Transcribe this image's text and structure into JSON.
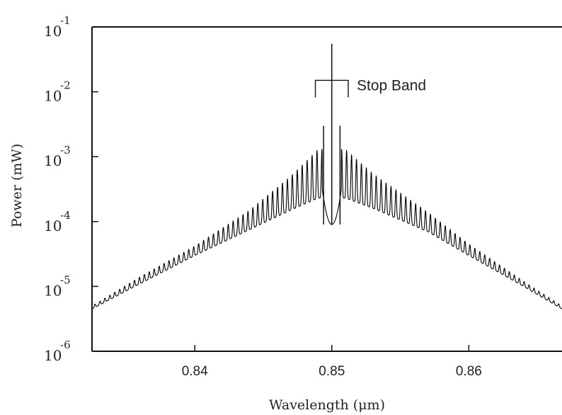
{
  "chart_data": {
    "type": "line",
    "title": "",
    "xlabel": "Wavelength (μm)",
    "ylabel": "Power (mW)",
    "xlim": [
      0.8325,
      0.8668
    ],
    "ylim": [
      1e-06,
      0.1
    ],
    "yscale": "log",
    "grid": false,
    "x_ticks": [
      {
        "value": 0.84,
        "label": "0.84"
      },
      {
        "value": 0.85,
        "label": "0.85"
      },
      {
        "value": 0.86,
        "label": "0.86"
      }
    ],
    "y_ticks": [
      {
        "value": 0.1,
        "base": "10",
        "exp": "-1"
      },
      {
        "value": 0.01,
        "base": "10",
        "exp": "-2"
      },
      {
        "value": 0.001,
        "base": "10",
        "exp": "-3"
      },
      {
        "value": 0.0001,
        "base": "10",
        "exp": "-4"
      },
      {
        "value": 1e-05,
        "base": "10",
        "exp": "-5"
      },
      {
        "value": 1e-06,
        "base": "10",
        "exp": "-6"
      }
    ],
    "series": [
      {
        "envelope_upper": [
          [
            0.8325,
            5e-06
          ],
          [
            0.836,
            1.4e-05
          ],
          [
            0.84,
            4.2e-05
          ],
          [
            0.844,
            0.00015
          ],
          [
            0.847,
            0.0005
          ],
          [
            0.849,
            0.0013
          ],
          [
            0.851,
            0.0013
          ],
          [
            0.853,
            0.00055
          ],
          [
            0.857,
            0.00014
          ],
          [
            0.86,
            4.5e-05
          ],
          [
            0.864,
            1.2e-05
          ],
          [
            0.8668,
            5e-06
          ]
        ],
        "envelope_lower": [
          [
            0.8325,
            4.5e-06
          ],
          [
            0.836,
            1.1e-05
          ],
          [
            0.84,
            3e-05
          ],
          [
            0.844,
            7.5e-05
          ],
          [
            0.847,
            0.00015
          ],
          [
            0.849,
            0.00023
          ],
          [
            0.851,
            0.00023
          ],
          [
            0.853,
            0.00016
          ],
          [
            0.857,
            7e-05
          ],
          [
            0.86,
            3e-05
          ],
          [
            0.864,
            1e-05
          ],
          [
            0.8668,
            4.5e-06
          ]
        ],
        "fringe_period": 0.00036,
        "peaks": [
          {
            "x": 0.85,
            "y": 0.055
          },
          {
            "x": 0.8494,
            "y": 0.003
          },
          {
            "x": 0.8506,
            "y": 0.003
          }
        ],
        "stop_band_dip": {
          "center": 0.85,
          "half_width": 0.0007,
          "min": 9e-05
        }
      }
    ],
    "annotations": [
      {
        "text": "Stop Band",
        "x_from": 0.8488,
        "x_to": 0.8512,
        "y": 0.015
      }
    ]
  }
}
